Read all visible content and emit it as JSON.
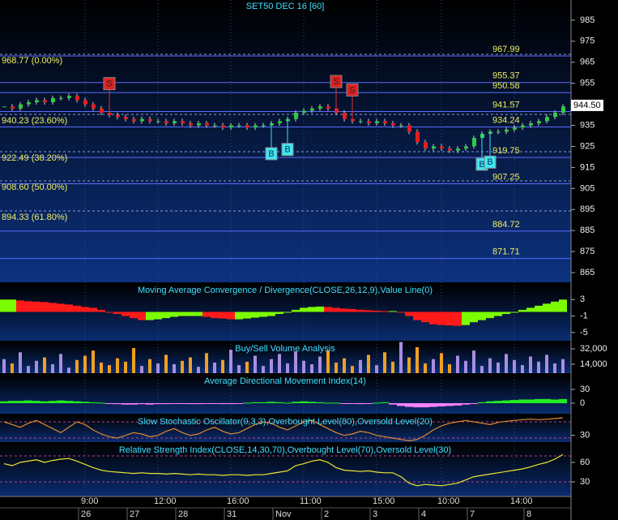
{
  "chart_data": {
    "type": "candlestick",
    "title": "SET50 DEC 16 [60]",
    "categories": [
      null,
      null,
      null,
      null,
      null,
      null,
      null,
      null,
      null,
      null,
      "9:00",
      null,
      null,
      null,
      null,
      null,
      null,
      null,
      null,
      "12:00",
      null,
      null,
      null,
      null,
      null,
      null,
      null,
      null,
      "16:00",
      null,
      null,
      null,
      null,
      null,
      null,
      null,
      null,
      "11:00",
      null,
      null,
      null,
      null,
      null,
      null,
      null,
      null,
      "15:00",
      null,
      null,
      null,
      null,
      null,
      null,
      null,
      "10:00",
      null,
      null,
      null,
      null,
      null,
      null,
      null,
      null,
      "14:00",
      null,
      null,
      null,
      null,
      null,
      null
    ],
    "dates": [
      null,
      null,
      null,
      null,
      null,
      null,
      null,
      null,
      null,
      null,
      "26",
      null,
      null,
      null,
      null,
      null,
      "27",
      null,
      null,
      null,
      null,
      null,
      "28",
      null,
      null,
      null,
      null,
      null,
      "31",
      null,
      null,
      null,
      null,
      null,
      "Nov",
      null,
      null,
      null,
      null,
      null,
      "2",
      null,
      null,
      null,
      null,
      null,
      "3",
      null,
      null,
      null,
      null,
      null,
      "4",
      null,
      null,
      null,
      null,
      null,
      "7",
      null,
      null,
      null,
      null,
      null,
      null,
      "8",
      null,
      null,
      null,
      null
    ],
    "close": [
      944,
      943,
      945,
      946,
      947,
      946,
      948,
      948,
      949,
      947,
      945,
      943,
      941,
      940,
      939,
      938,
      937,
      938,
      937,
      937,
      936,
      937,
      936,
      935,
      936,
      935,
      935,
      934,
      935,
      935,
      934,
      935,
      935,
      936,
      937,
      938,
      941,
      942,
      943,
      944,
      943,
      941,
      938,
      937,
      937,
      936,
      937,
      936,
      935,
      935,
      932,
      927,
      924,
      925,
      924,
      923,
      924,
      925,
      929,
      931,
      932,
      932,
      933,
      934,
      935,
      936,
      937,
      939,
      941,
      944
    ],
    "signals": [
      null,
      null,
      null,
      null,
      null,
      null,
      null,
      null,
      null,
      null,
      null,
      null,
      null,
      "S",
      null,
      null,
      null,
      null,
      null,
      null,
      null,
      null,
      null,
      null,
      null,
      null,
      null,
      null,
      null,
      null,
      null,
      null,
      null,
      "B",
      null,
      "B",
      null,
      null,
      null,
      null,
      null,
      "S",
      null,
      "S",
      null,
      null,
      null,
      null,
      null,
      null,
      null,
      null,
      null,
      null,
      null,
      null,
      null,
      null,
      null,
      "B",
      "B",
      null,
      null,
      null,
      null,
      null,
      null,
      null,
      null,
      null
    ],
    "ylim": [
      860.4,
      994.6
    ],
    "yticks": [
      985,
      975,
      965,
      955,
      945,
      935,
      925,
      915,
      905,
      895,
      885,
      875,
      865
    ],
    "levels": [
      967.99,
      955.37,
      950.58,
      941.57,
      934.24,
      919.75,
      907.25,
      884.72,
      871.71
    ],
    "fib_levels": [
      {
        "value": 968.77,
        "label": "968.77 (0.00%)"
      },
      {
        "value": 940.23,
        "label": "940.23 (23.60%)"
      },
      {
        "value": 922.49,
        "label": "922.49 (38.20%)"
      },
      {
        "value": 908.6,
        "label": "908.60 (50.00%)"
      },
      {
        "value": 894.33,
        "label": "894.33 (61.80%)"
      }
    ],
    "last_price": {
      "value": 944.5,
      "label": "944.50"
    },
    "indicators": [
      {
        "type": "histogram",
        "title": "Moving Average Convergence / Divergence(CLOSE,26,12,9),Value Line(0)",
        "values": [
          3,
          3,
          2.8,
          2.6,
          2.5,
          2.4,
          2.2,
          2,
          1.8,
          1.5,
          1.2,
          1,
          0.5,
          0,
          -0.5,
          -1,
          -1.5,
          -2,
          -2,
          -1.8,
          -1.5,
          -1.2,
          -1,
          -1,
          -1,
          -1.2,
          -1.5,
          -1.6,
          -1.8,
          -1.8,
          -1.6,
          -1.4,
          -1.2,
          -1,
          -0.5,
          0,
          0.5,
          1,
          1.2,
          1.3,
          1.2,
          1,
          0.8,
          0.7,
          0.5,
          0.4,
          0.3,
          0.2,
          0.2,
          0,
          -1,
          -2,
          -2.5,
          -3,
          -3.2,
          -3.3,
          -3.4,
          -3.2,
          -2.5,
          -2,
          -1.5,
          -1,
          -0.5,
          0,
          0.5,
          1,
          1.5,
          2,
          2.5,
          3
        ],
        "ylim": [
          -7,
          6.8
        ],
        "yticks": [
          3,
          -1,
          -5
        ]
      },
      {
        "type": "bar",
        "title": "Buy/Sell Volume Analysis",
        "color": "#a98ee0",
        "values": [
          20000,
          15000,
          28000,
          12000,
          18000,
          22000,
          14000,
          26000,
          10000,
          19000,
          24000,
          30000,
          16000,
          13000,
          21000,
          17000,
          33000,
          12000,
          20000,
          15000,
          25000,
          14000,
          18000,
          22000,
          11000,
          27000,
          16000,
          19000,
          31000,
          13000,
          17000,
          24000,
          12000,
          20000,
          26000,
          15000,
          29000,
          18000,
          14000,
          23000,
          30000,
          16000,
          21000,
          12000,
          19000,
          25000,
          13000,
          28000,
          17000,
          40000,
          22000,
          34000,
          15000,
          20000,
          27000,
          14000,
          24000,
          18000,
          30000,
          12000,
          21000,
          16000,
          26000,
          19000,
          13000,
          23000,
          17000,
          25000,
          15000,
          20000
        ],
        "ylim": [
          3600,
          39600
        ],
        "yticks": [
          {
            "value": 32000,
            "label": "32,000"
          },
          {
            "value": 14000,
            "label": "14,000"
          }
        ]
      },
      {
        "type": "histogram",
        "title": "Average Directional Movement Index(14)",
        "values": [
          4,
          5,
          5,
          6,
          5,
          4,
          5,
          6,
          5,
          4,
          3,
          2,
          1,
          -1,
          -2,
          -3,
          -3,
          -2,
          -3,
          -2,
          -2,
          -1,
          -1,
          -2,
          -2,
          -1,
          -1,
          -2,
          -2,
          -1,
          1,
          2,
          2,
          3,
          2,
          1,
          3,
          4,
          3,
          2,
          1,
          1,
          -1,
          -1,
          -2,
          -1,
          1,
          2,
          -3,
          -6,
          -8,
          -9,
          -9,
          -8,
          -7,
          -6,
          -5,
          -3,
          -1,
          2,
          4,
          5,
          6,
          7,
          8,
          8,
          9,
          9,
          8,
          9
        ],
        "ylim": [
          -22.9,
          61.8
        ],
        "yticks": [
          30,
          0
        ]
      },
      {
        "type": "line",
        "title": "Slow Stochastic Oscillator(9,3,3),Overbought Level(80),Oversold Level(20)",
        "color": "#e08a30",
        "values": [
          80,
          70,
          60,
          75,
          85,
          70,
          55,
          40,
          60,
          80,
          70,
          50,
          35,
          25,
          20,
          30,
          40,
          35,
          25,
          30,
          45,
          55,
          40,
          30,
          35,
          50,
          60,
          45,
          35,
          40,
          55,
          70,
          80,
          75,
          60,
          50,
          65,
          80,
          85,
          70,
          55,
          40,
          30,
          35,
          45,
          40,
          30,
          25,
          20,
          15,
          10,
          15,
          30,
          50,
          65,
          75,
          80,
          85,
          80,
          75,
          70,
          78,
          82,
          85,
          88,
          90,
          88,
          90,
          92,
          95
        ],
        "levels": [
          80,
          20
        ],
        "ylim": [
          5,
          104
        ],
        "yticks": [
          30
        ]
      },
      {
        "type": "line",
        "title": "Relative Strength Index(CLOSE,14,30,70),Overbought Level(70),Oversold Level(30)",
        "color": "#e8e830",
        "values": [
          58,
          55,
          60,
          62,
          64,
          60,
          63,
          65,
          66,
          62,
          57,
          52,
          48,
          46,
          45,
          44,
          43,
          44,
          43,
          43,
          42,
          43,
          42,
          41,
          42,
          41,
          41,
          40,
          41,
          41,
          40,
          41,
          41,
          43,
          45,
          47,
          55,
          58,
          62,
          64,
          60,
          52,
          48,
          47,
          46,
          47,
          45,
          44,
          44,
          38,
          28,
          24,
          26,
          25,
          24,
          26,
          28,
          33,
          38,
          40,
          42,
          44,
          46,
          48,
          50,
          53,
          57,
          60,
          65,
          72
        ],
        "levels": [
          70,
          30
        ],
        "ylim": [
          7.5,
          88.75
        ],
        "yticks": [
          60,
          30
        ]
      }
    ]
  }
}
